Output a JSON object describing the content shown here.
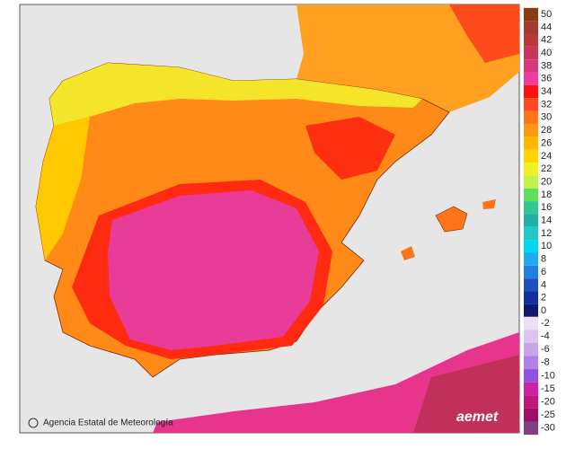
{
  "credit": "Agencia Estatal de Meteorología",
  "logo": "aemet",
  "legend_upper": [
    {
      "value": 50,
      "color": "#8a3b12"
    },
    {
      "value": 44,
      "color": "#a23a2e"
    },
    {
      "value": 42,
      "color": "#b8383c"
    },
    {
      "value": 40,
      "color": "#c7375a"
    },
    {
      "value": 38,
      "color": "#d9377c"
    },
    {
      "value": 36,
      "color": "#ee3ca0"
    },
    {
      "value": 34,
      "color": "#ff1010"
    },
    {
      "value": 32,
      "color": "#ff4a1c"
    },
    {
      "value": 30,
      "color": "#ff7418"
    },
    {
      "value": 28,
      "color": "#ff9812"
    },
    {
      "value": 26,
      "color": "#ffb600"
    },
    {
      "value": 24,
      "color": "#ffd400"
    },
    {
      "value": 22,
      "color": "#f2f020"
    },
    {
      "value": 20,
      "color": "#c4f048"
    },
    {
      "value": 18,
      "color": "#5ee05e"
    },
    {
      "value": 16,
      "color": "#30c890"
    },
    {
      "value": 14,
      "color": "#20b0a4"
    },
    {
      "value": 12,
      "color": "#20c8c8"
    },
    {
      "value": 10,
      "color": "#00d8f0"
    },
    {
      "value": 8,
      "color": "#20a8f0"
    },
    {
      "value": 6,
      "color": "#2080e0"
    },
    {
      "value": 4,
      "color": "#2050c0"
    },
    {
      "value": 2,
      "color": "#1030a0"
    },
    {
      "value": 0,
      "color": "#101870"
    }
  ],
  "legend_lower": [
    {
      "value": -2,
      "color": "#ece0f4"
    },
    {
      "value": -4,
      "color": "#dcc4ee"
    },
    {
      "value": -6,
      "color": "#c8a4ea"
    },
    {
      "value": -8,
      "color": "#b082e8"
    },
    {
      "value": -10,
      "color": "#9050e0"
    },
    {
      "value": -15,
      "color": "#d020a4"
    },
    {
      "value": -20,
      "color": "#c01878"
    },
    {
      "value": -25,
      "color": "#a01062"
    },
    {
      "value": -30,
      "color": "#804080"
    }
  ]
}
